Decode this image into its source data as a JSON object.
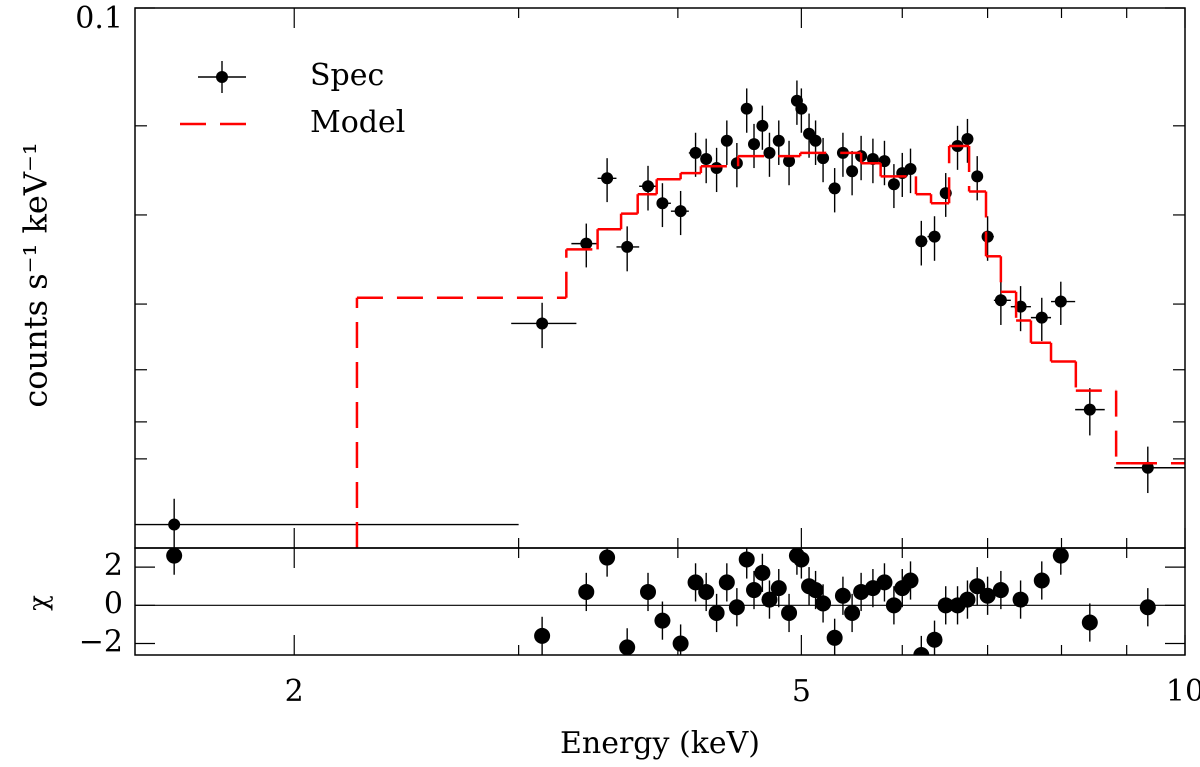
{
  "chart_data": {
    "type": "spectrum",
    "xlabel": "Energy (keV)",
    "ylabel": "counts s⁻¹ keV⁻¹",
    "xscale": "log",
    "yscale": "log",
    "xlim": [
      1.5,
      10
    ],
    "xticks": [
      2,
      5,
      10
    ],
    "xticks_minor": [
      3,
      4,
      6,
      7,
      8,
      9
    ],
    "ylim": [
      0.0015,
      0.1
    ],
    "yticks": [
      0.1
    ],
    "yticks_minor": [
      0.04,
      0.02,
      0.01,
      0.006,
      0.004,
      0.003
    ],
    "legend": "upper left",
    "series": [
      {
        "name": "Spec",
        "type": "errorbar",
        "color": "#000000",
        "x": [
          1.61,
          3.13,
          3.39,
          3.52,
          3.65,
          3.79,
          3.89,
          4.02,
          4.13,
          4.21,
          4.29,
          4.37,
          4.45,
          4.53,
          4.59,
          4.66,
          4.72,
          4.8,
          4.89,
          4.96,
          5.0,
          5.07,
          5.13,
          5.2,
          5.31,
          5.39,
          5.48,
          5.57,
          5.69,
          5.81,
          5.91,
          6.0,
          6.09,
          6.21,
          6.36,
          6.49,
          6.63,
          6.75,
          6.87,
          7.0,
          7.17,
          7.43,
          7.72,
          7.99,
          8.42,
          9.35
        ],
        "x_low": [
          1.5,
          2.96,
          3.3,
          3.46,
          3.58,
          3.73,
          3.85,
          3.95,
          4.08,
          4.17,
          4.25,
          4.33,
          4.41,
          4.49,
          4.56,
          4.62,
          4.69,
          4.76,
          4.85,
          4.93,
          4.98,
          5.03,
          5.1,
          5.17,
          5.25,
          5.35,
          5.43,
          5.52,
          5.63,
          5.75,
          5.86,
          5.96,
          6.05,
          6.15,
          6.28,
          6.43,
          6.56,
          6.69,
          6.81,
          6.93,
          7.08,
          7.3,
          7.57,
          7.85,
          8.2,
          8.8
        ],
        "x_high": [
          3.0,
          3.33,
          3.46,
          3.58,
          3.73,
          3.85,
          3.95,
          4.08,
          4.17,
          4.25,
          4.33,
          4.41,
          4.49,
          4.56,
          4.62,
          4.69,
          4.76,
          4.85,
          4.93,
          4.98,
          5.03,
          5.1,
          5.17,
          5.25,
          5.35,
          5.43,
          5.52,
          5.63,
          5.75,
          5.86,
          5.96,
          6.05,
          6.15,
          6.28,
          6.43,
          6.56,
          6.69,
          6.81,
          6.93,
          7.08,
          7.3,
          7.57,
          7.85,
          8.2,
          8.65,
          10
        ],
        "values": [
          0.0018,
          0.0086,
          0.016,
          0.0266,
          0.0156,
          0.025,
          0.0219,
          0.0206,
          0.0324,
          0.0309,
          0.0288,
          0.0356,
          0.0299,
          0.0457,
          0.0347,
          0.04,
          0.0324,
          0.0356,
          0.0304,
          0.0486,
          0.0457,
          0.0376,
          0.0356,
          0.0311,
          0.0246,
          0.0324,
          0.0281,
          0.0316,
          0.0309,
          0.0304,
          0.0254,
          0.0277,
          0.0286,
          0.0163,
          0.0169,
          0.0237,
          0.0342,
          0.0361,
          0.027,
          0.0169,
          0.0103,
          0.0098,
          0.009,
          0.0102,
          0.0044,
          0.0028
        ],
        "errors": [
          0.0004,
          0.0015,
          0.0027,
          0.0045,
          0.0027,
          0.0043,
          0.0037,
          0.0035,
          0.0055,
          0.0053,
          0.0049,
          0.0061,
          0.0051,
          0.0078,
          0.0059,
          0.0068,
          0.0055,
          0.0061,
          0.0052,
          0.0083,
          0.0078,
          0.0064,
          0.0061,
          0.0053,
          0.0042,
          0.0055,
          0.0048,
          0.0054,
          0.0053,
          0.0052,
          0.0043,
          0.0047,
          0.0049,
          0.0028,
          0.0029,
          0.004,
          0.0058,
          0.0061,
          0.0046,
          0.0029,
          0.0018,
          0.0017,
          0.0015,
          0.0017,
          0.0008,
          0.0005
        ]
      },
      {
        "name": "Model",
        "type": "step",
        "color": "#ff0000",
        "style": "dashed",
        "edges": [
          2.24,
          3.27,
          3.46,
          3.61,
          3.72,
          3.85,
          4.02,
          4.17,
          4.46,
          4.99,
          5.57,
          5.77,
          6.15,
          6.32,
          6.53,
          6.77,
          6.98,
          7.17,
          7.37,
          7.57,
          7.85,
          8.21,
          8.83,
          9.07,
          10
        ],
        "values": [
          0.0105,
          0.0153,
          0.0179,
          0.0202,
          0.0235,
          0.0264,
          0.0277,
          0.0292,
          0.0316,
          0.0324,
          0.0299,
          0.027,
          0.0235,
          0.0219,
          0.0342,
          0.024,
          0.0145,
          0.011,
          0.0088,
          0.0074,
          0.0064,
          0.0051,
          0.0029,
          0.0029
        ]
      }
    ],
    "residuals": {
      "ylabel": "χ",
      "ylim": [
        -2.6,
        3
      ],
      "yticks": [
        {
          "value": -2,
          "label": "−2"
        },
        0,
        2
      ],
      "values": [
        2.6,
        -1.6,
        0.7,
        2.5,
        -2.2,
        0.7,
        -0.8,
        -2.0,
        1.2,
        0.7,
        -0.4,
        1.2,
        -0.1,
        2.4,
        0.8,
        1.7,
        0.3,
        0.9,
        -0.4,
        2.6,
        2.4,
        1.0,
        0.8,
        0.1,
        -1.7,
        0.5,
        -0.4,
        0.7,
        0.9,
        1.2,
        0,
        0.9,
        1.3,
        -2.6,
        -1.8,
        0,
        0,
        0.3,
        1.0,
        0.5,
        0.8,
        0.3,
        1.3,
        2.6,
        -0.9,
        -0.1
      ],
      "errors": 1
    }
  }
}
